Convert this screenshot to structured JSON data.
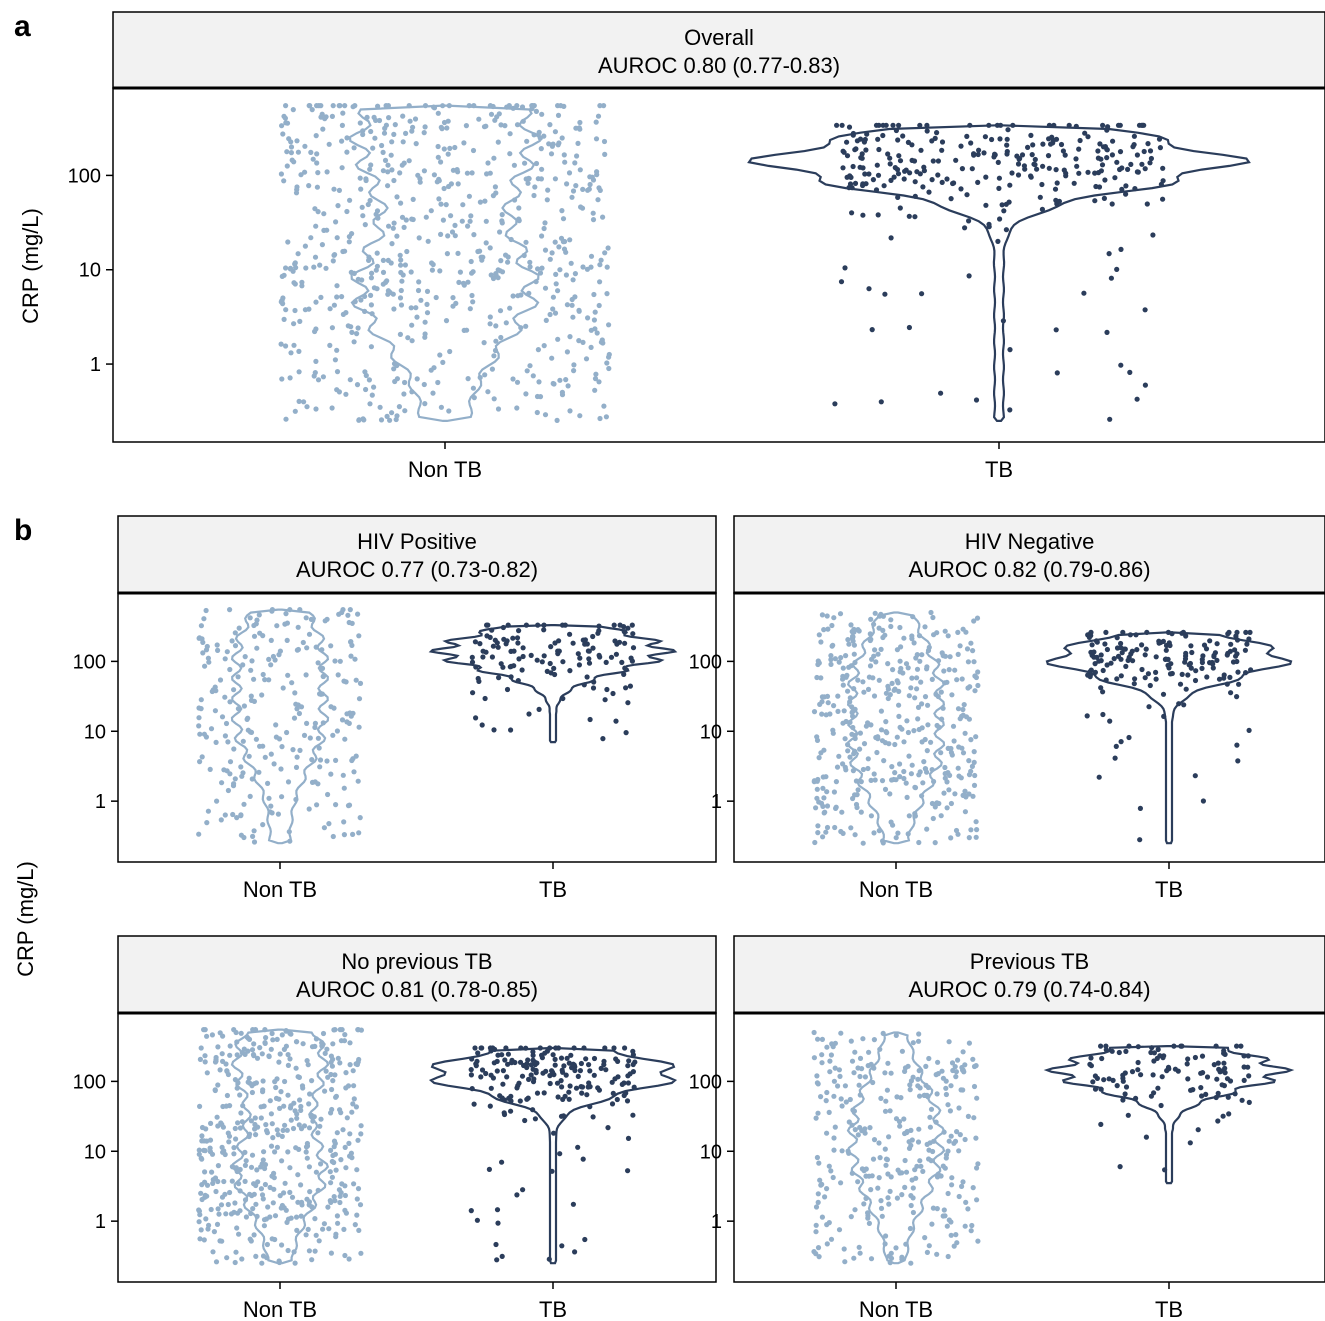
{
  "figure": {
    "panel_a_letter": "a",
    "panel_b_letter": "b",
    "ylabel": "CRP (mg/L)"
  },
  "colors": {
    "non_tb": "#93afc9",
    "tb": "#2b3d5b",
    "strip_fill": "#f2f2f2"
  },
  "chart_data": [
    {
      "type": "violin",
      "panel": "a",
      "strip_title": "Overall",
      "strip_subtitle": "AUROC 0.80 (0.77-0.83)",
      "ylabel": "CRP (mg/L)",
      "yscale": "log10",
      "yticks": [
        1,
        10,
        100
      ],
      "ylim": [
        0.2,
        600
      ],
      "categories": [
        "Non TB",
        "TB"
      ],
      "series": [
        {
          "name": "Non TB",
          "n_points": 700,
          "min": 0.25,
          "max": 550,
          "violin_modes": [
            6,
            250
          ],
          "color": "#93afc9"
        },
        {
          "name": "TB",
          "n_points": 300,
          "min": 0.25,
          "max": 340,
          "violin_modes": [
            140
          ],
          "color": "#2b3d5b"
        }
      ]
    },
    {
      "type": "violin",
      "panel": "b",
      "strip_title": "HIV Positive",
      "strip_subtitle": "AUROC 0.77 (0.73-0.82)",
      "yscale": "log10",
      "yticks": [
        1,
        10,
        100
      ],
      "ylim": [
        0.2,
        600
      ],
      "categories": [
        "Non TB",
        "TB"
      ],
      "series": [
        {
          "name": "Non TB",
          "n_points": 260,
          "min": 0.25,
          "max": 550,
          "violin_modes": [
            10,
            150
          ],
          "color": "#93afc9"
        },
        {
          "name": "TB",
          "n_points": 130,
          "min": 7,
          "max": 330,
          "violin_modes": [
            140
          ],
          "color": "#2b3d5b"
        }
      ]
    },
    {
      "type": "violin",
      "panel": "b",
      "strip_title": "HIV Negative",
      "strip_subtitle": "AUROC 0.82 (0.79-0.86)",
      "yscale": "log10",
      "yticks": [
        1,
        10,
        100
      ],
      "ylim": [
        0.2,
        600
      ],
      "categories": [
        "Non TB",
        "TB"
      ],
      "series": [
        {
          "name": "Non TB",
          "n_points": 420,
          "min": 0.25,
          "max": 500,
          "violin_modes": [
            4,
            60
          ],
          "color": "#93afc9"
        },
        {
          "name": "TB",
          "n_points": 170,
          "min": 0.25,
          "max": 260,
          "violin_modes": [
            110
          ],
          "color": "#2b3d5b"
        }
      ]
    },
    {
      "type": "violin",
      "panel": "b",
      "strip_title": "No previous TB",
      "strip_subtitle": "AUROC 0.81 (0.78-0.85)",
      "yscale": "log10",
      "yticks": [
        1,
        10,
        100
      ],
      "ylim": [
        0.2,
        600
      ],
      "categories": [
        "Non TB",
        "TB"
      ],
      "series": [
        {
          "name": "Non TB",
          "n_points": 480,
          "min": 0.25,
          "max": 550,
          "violin_modes": [
            5,
            200
          ],
          "color": "#93afc9"
        },
        {
          "name": "TB",
          "n_points": 200,
          "min": 0.25,
          "max": 300,
          "violin_modes": [
            130
          ],
          "color": "#2b3d5b"
        }
      ]
    },
    {
      "type": "violin",
      "panel": "b",
      "strip_title": "Previous TB",
      "strip_subtitle": "AUROC 0.79 (0.74-0.84)",
      "yscale": "log10",
      "yticks": [
        1,
        10,
        100
      ],
      "ylim": [
        0.2,
        600
      ],
      "categories": [
        "Non TB",
        "TB"
      ],
      "series": [
        {
          "name": "Non TB",
          "n_points": 320,
          "min": 0.25,
          "max": 500,
          "violin_modes": [
            5,
            40
          ],
          "color": "#93afc9"
        },
        {
          "name": "TB",
          "n_points": 110,
          "min": 3.5,
          "max": 320,
          "violin_modes": [
            140
          ],
          "color": "#2b3d5b"
        }
      ]
    }
  ]
}
